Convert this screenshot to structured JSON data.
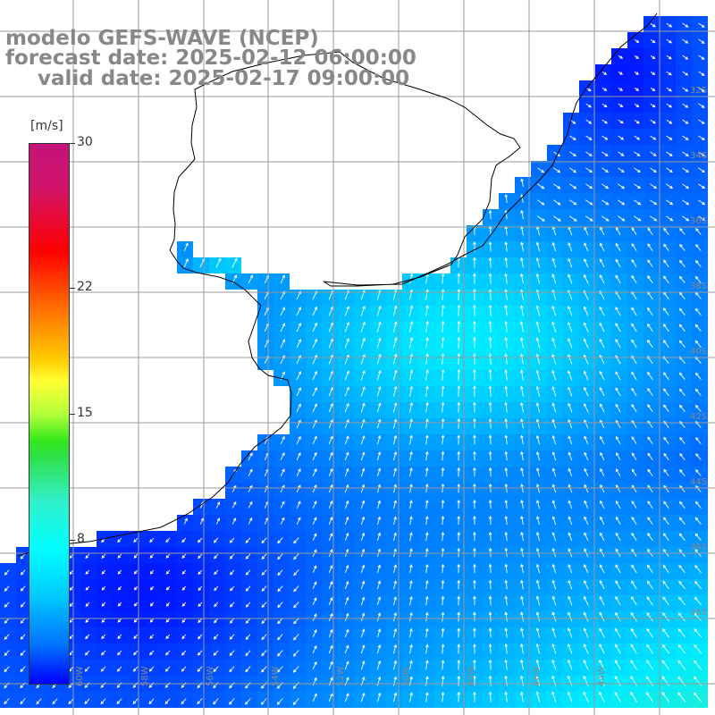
{
  "title": {
    "line1": "modelo GEFS-WAVE (NCEP)",
    "line2": "forecast date: 2025-02-12 06:00:00",
    "line3": "valid date: 2025-02-17 09:00:00"
  },
  "colorbar": {
    "unit": "[m/s]",
    "ticks": [
      "30",
      "22",
      "15",
      "8"
    ],
    "tick_values": [
      30,
      22,
      15,
      8
    ],
    "range": [
      0,
      30
    ]
  },
  "grid_labels": {
    "lat_right": [
      "32S",
      "34S",
      "36S",
      "38S",
      "40S",
      "42S",
      "44S",
      "46S",
      "48S"
    ],
    "lon_bottom": [
      "60W",
      "58W",
      "56W",
      "54W",
      "52W",
      "50W",
      "48W",
      "46W",
      "44W"
    ]
  },
  "colors": {
    "ocean_low": "#0033ff",
    "ocean_mid": "#00e6ff",
    "ocean_high": "#33ee33",
    "land": "#ffffff",
    "grid": "#9a9a9a",
    "coast": "#000000",
    "arrow": "#ffffff",
    "title_text": "#888888"
  }
}
